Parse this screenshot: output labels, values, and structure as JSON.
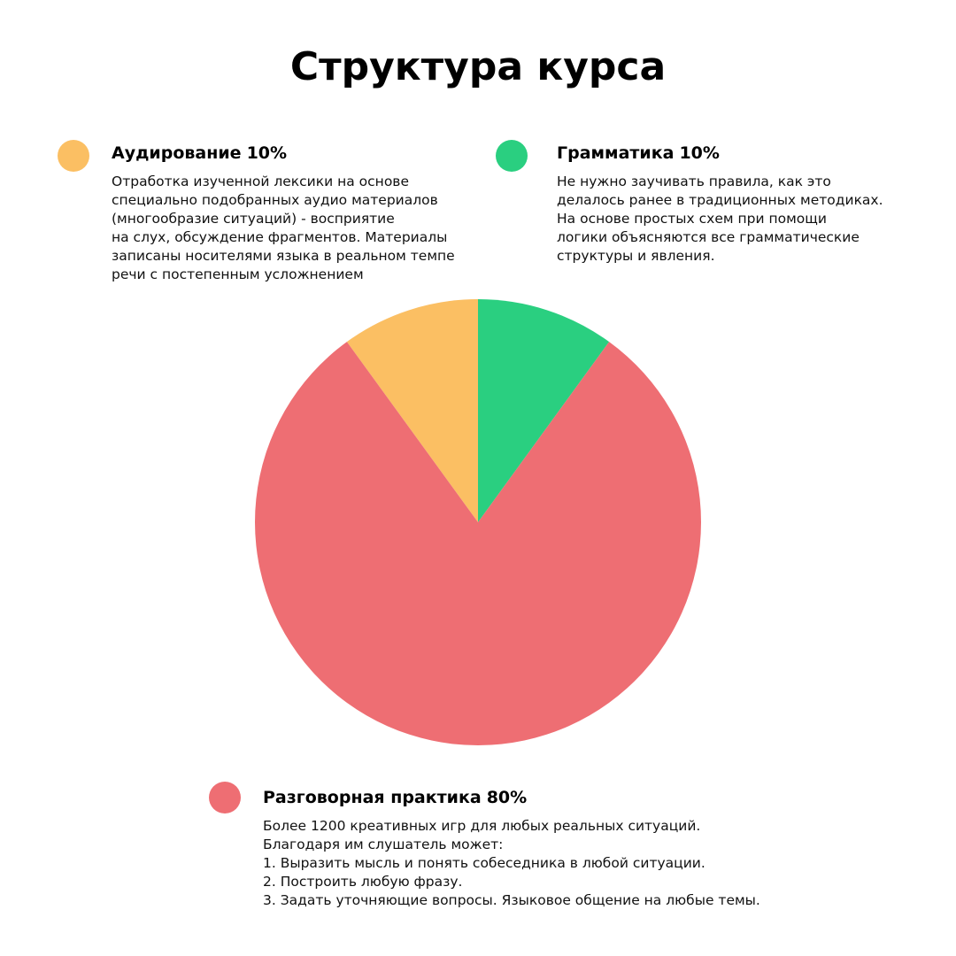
{
  "chart_data": {
    "type": "pie",
    "title": "Структура курса",
    "categories": [
      "Аудирование",
      "Грамматика",
      "Разговорная практика"
    ],
    "values": [
      10,
      10,
      80
    ],
    "value_labels": [
      "10%",
      "10%",
      "80%"
    ],
    "colors": [
      "#fbbf63",
      "#2acf80",
      "#ee6e73"
    ],
    "descriptions": [
      [
        "Отработка изученной лексики на основе",
        "специально подобранных аудио материалов",
        "(многообразие ситуаций) - восприятие",
        "на слух, обсуждение фрагментов. Материалы",
        "записаны носителями языка в реальном темпе",
        "речи с постепенным усложнением"
      ],
      [
        "Не нужно заучивать правила, как это",
        "делалось ранее в традиционных методиках.",
        "На основе простых схем при помощи",
        "логики объясняются все грамматические",
        "структуры и явления."
      ],
      [
        "Более 1200 креативных игр для любых реальных ситуаций.",
        "Благодаря им слушатель может:",
        "1. Выразить мысль и понять собеседника в любой ситуации.",
        "2. Построить любую фразу.",
        "3. Задать уточняющие вопросы. Языковое общение на любые темы."
      ]
    ]
  }
}
